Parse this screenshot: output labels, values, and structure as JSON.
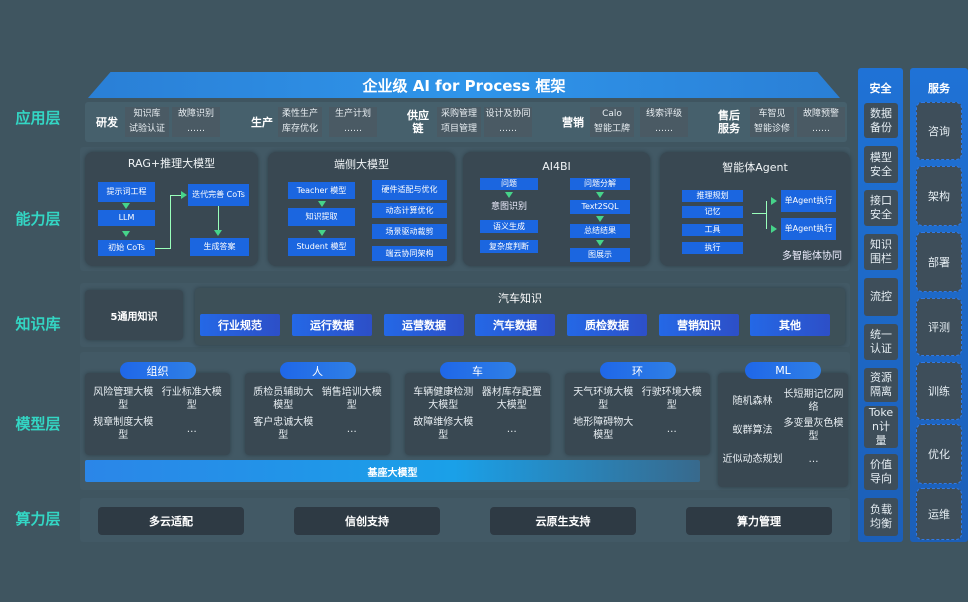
{
  "title": "企业级 AI for Process 框架",
  "layers": {
    "app": "应用层",
    "capability": "能力层",
    "knowledge": "知识库",
    "model": "模型层",
    "compute": "算力层"
  },
  "app_groups": [
    {
      "label": "研发",
      "items": [
        [
          "知识库",
          "试验认证"
        ],
        [
          "故障识别",
          "……"
        ]
      ]
    },
    {
      "label": "生产",
      "items": [
        [
          "柔性生产",
          "库存优化"
        ],
        [
          "生产计划",
          "……"
        ]
      ]
    },
    {
      "label": "供应链",
      "items": [
        [
          "采购管理",
          "项目管理"
        ],
        [
          "设计及协同",
          "……"
        ]
      ]
    },
    {
      "label": "营销",
      "items": [
        [
          "Calo",
          "智能工牌"
        ],
        [
          "线索评级",
          "……"
        ]
      ]
    },
    {
      "label": "售后服务",
      "items": [
        [
          "车智见",
          "智能诊修"
        ],
        [
          "故障预警",
          "……"
        ]
      ]
    }
  ],
  "capabilities": {
    "rag": {
      "title": "RAG+推理大模型",
      "prompt": "提示词工程",
      "llm": "LLM",
      "init": "初始 CoTs",
      "iter": "迭代完善 CoTs",
      "answer": "生成答案"
    },
    "edge": {
      "title": "端侧大模型",
      "teacher": "Teacher 模型",
      "extract": "知识提取",
      "student": "Student 模型",
      "hw": "硬件适配与优化",
      "dyn": "动态计算优化",
      "prune": "场景驱动裁剪",
      "cloud": "端云协同架构"
    },
    "ai4bi": {
      "title": "AI4BI",
      "question": "问题",
      "intent": "意图识别",
      "semantic": "语义生成",
      "complexity": "复杂度判断",
      "decompose": "问题分解",
      "sql": "Text2SQL",
      "summary": "总结结果",
      "chart": "图展示"
    },
    "agent": {
      "title": "智能体Agent",
      "plan": "推理规划",
      "memory": "记忆",
      "tools": "工具",
      "exec": "执行",
      "single1": "单Agent执行",
      "single2": "单Agent执行",
      "multi": "多智能体协同"
    }
  },
  "knowledge": {
    "general": "5通用知识",
    "auto_title": "汽车知识",
    "items": [
      "行业规范",
      "运行数据",
      "运营数据",
      "汽车数据",
      "质检数据",
      "营销知识",
      "其他"
    ]
  },
  "model": {
    "groups": [
      {
        "tag": "组织",
        "items": [
          "风险管理大模型",
          "行业标准大模型",
          "规章制度大模型",
          "…"
        ]
      },
      {
        "tag": "人",
        "items": [
          "质检员辅助大模型",
          "销售培训大模型",
          "客户忠诚大模型",
          "…"
        ]
      },
      {
        "tag": "车",
        "items": [
          "车辆健康检测大模型",
          "器材库存配置大模型",
          "故障维修大模型",
          "…"
        ]
      },
      {
        "tag": "环",
        "items": [
          "天气环境大模型",
          "行驶环境大模型",
          "地形障碍物大模型",
          "…"
        ]
      },
      {
        "tag": "ML",
        "items": [
          "随机森林",
          "长短期记忆网络",
          "蚁群算法",
          "多变量灰色模型",
          "近似动态规划",
          "…"
        ]
      }
    ],
    "base": "基座大模型"
  },
  "compute": [
    "多云适配",
    "信创支持",
    "云原生支持",
    "算力管理"
  ],
  "security": {
    "title": "安全",
    "items": [
      "数据备份",
      "模型安全",
      "接口安全",
      "知识围栏",
      "流控",
      "统一认证",
      "资源隔离",
      "Token计量",
      "价值导向",
      "负载均衡"
    ]
  },
  "services": {
    "title": "服务",
    "items": [
      "咨询",
      "架构",
      "部署",
      "评测",
      "训练",
      "优化",
      "运维"
    ]
  }
}
